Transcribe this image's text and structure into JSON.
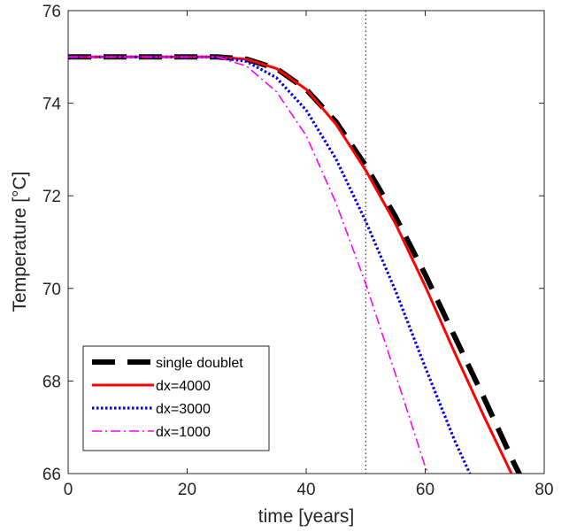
{
  "chart_data": {
    "type": "line",
    "xlabel": "time [years]",
    "ylabel": "Temperature [°C]",
    "xlim": [
      0,
      80
    ],
    "ylim": [
      66,
      76
    ],
    "xticks": [
      0,
      20,
      40,
      60,
      80
    ],
    "yticks": [
      66,
      68,
      70,
      72,
      74,
      76
    ],
    "grid": false,
    "legend_position": "bottom-left",
    "reference_line": {
      "x": 50,
      "style": "dotted",
      "color": "#333333"
    },
    "series": [
      {
        "name": "single doublet",
        "color": "#000000",
        "style": "dashed",
        "x": [
          0,
          10,
          20,
          25,
          30,
          35,
          40,
          45,
          50,
          55,
          60,
          65,
          70,
          75,
          76
        ],
        "y": [
          75,
          75,
          75,
          75,
          74.95,
          74.75,
          74.3,
          73.6,
          72.65,
          71.55,
          70.3,
          68.95,
          67.6,
          66.2,
          65.95
        ]
      },
      {
        "name": "dx=4000",
        "color": "#ff0000",
        "style": "solid",
        "x": [
          0,
          10,
          20,
          25,
          30,
          35,
          40,
          45,
          50,
          55,
          60,
          65,
          70,
          74.5
        ],
        "y": [
          75,
          75,
          75,
          75,
          74.95,
          74.75,
          74.3,
          73.55,
          72.55,
          71.4,
          70.05,
          68.6,
          67.2,
          66
        ]
      },
      {
        "name": "dx=3000",
        "color": "#0000ee",
        "style": "dotted",
        "x": [
          0,
          10,
          20,
          25,
          30,
          35,
          40,
          45,
          50,
          55,
          60,
          65,
          67.5
        ],
        "y": [
          75,
          75,
          75,
          75,
          74.9,
          74.55,
          73.85,
          72.8,
          71.45,
          69.95,
          68.3,
          66.7,
          66
        ]
      },
      {
        "name": "dx=1000",
        "color": "#ff00ff",
        "style": "dashdot",
        "x": [
          0,
          10,
          20,
          25,
          30,
          35,
          40,
          45,
          50,
          55,
          60,
          60.5
        ],
        "y": [
          75,
          75,
          75,
          75,
          74.8,
          74.25,
          73.3,
          71.85,
          70.1,
          68.15,
          66.15,
          66
        ]
      }
    ]
  }
}
